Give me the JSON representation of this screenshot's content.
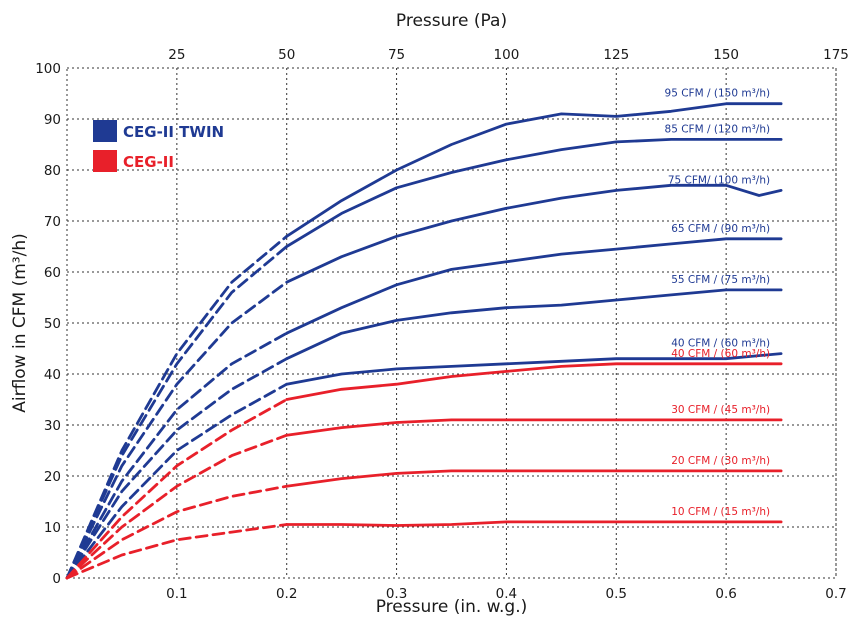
{
  "chart_data": {
    "type": "line",
    "title": "",
    "xlabel": "Pressure (in. w.g.)",
    "ylabel": "Airflow in CFM (m³/h)",
    "x2label": "Pressure (Pa)",
    "xlim": [
      0,
      0.7
    ],
    "ylim": [
      0,
      100
    ],
    "x2lim": [
      0,
      175
    ],
    "x_ticks": [
      0.1,
      0.2,
      0.3,
      0.4,
      0.5,
      0.6,
      0.7
    ],
    "y_ticks": [
      0,
      10,
      20,
      30,
      40,
      50,
      60,
      70,
      80,
      90,
      100
    ],
    "x2_ticks": [
      25,
      50,
      75,
      100,
      125,
      150,
      175
    ],
    "grid": true,
    "legend": {
      "placement": "top-left",
      "entries": [
        {
          "name": "CEG-II TWIN",
          "color": "#1f3a93"
        },
        {
          "name": "CEG-II",
          "color": "#e8202a"
        }
      ]
    },
    "series": [
      {
        "name": "95 CFM / (150 m³/h)",
        "group": "CEG-II TWIN",
        "color": "#1f3a93",
        "dashed": [
          [
            0,
            0
          ],
          [
            0.05,
            25
          ],
          [
            0.1,
            44
          ],
          [
            0.15,
            58
          ],
          [
            0.2,
            67
          ]
        ],
        "solid": [
          [
            0.2,
            67
          ],
          [
            0.25,
            74
          ],
          [
            0.3,
            80
          ],
          [
            0.35,
            85
          ],
          [
            0.4,
            89
          ],
          [
            0.45,
            91
          ],
          [
            0.5,
            90.5
          ],
          [
            0.55,
            91.5
          ],
          [
            0.6,
            93
          ],
          [
            0.65,
            93
          ]
        ]
      },
      {
        "name": "85 CFM / (120 m³/h)",
        "group": "CEG-II TWIN",
        "color": "#1f3a93",
        "dashed": [
          [
            0,
            0
          ],
          [
            0.05,
            24
          ],
          [
            0.1,
            42
          ],
          [
            0.15,
            56
          ],
          [
            0.2,
            65
          ]
        ],
        "solid": [
          [
            0.2,
            65
          ],
          [
            0.25,
            71.5
          ],
          [
            0.3,
            76.5
          ],
          [
            0.35,
            79.5
          ],
          [
            0.4,
            82
          ],
          [
            0.45,
            84
          ],
          [
            0.5,
            85.5
          ],
          [
            0.55,
            86
          ],
          [
            0.6,
            86
          ],
          [
            0.65,
            86
          ]
        ]
      },
      {
        "name": "75 CFM/ (100 m³/h)",
        "group": "CEG-II TWIN",
        "color": "#1f3a93",
        "dashed": [
          [
            0,
            0
          ],
          [
            0.05,
            22
          ],
          [
            0.1,
            38
          ],
          [
            0.15,
            50
          ],
          [
            0.2,
            58
          ]
        ],
        "solid": [
          [
            0.2,
            58
          ],
          [
            0.25,
            63
          ],
          [
            0.3,
            67
          ],
          [
            0.35,
            70
          ],
          [
            0.4,
            72.5
          ],
          [
            0.45,
            74.5
          ],
          [
            0.5,
            76
          ],
          [
            0.55,
            77
          ],
          [
            0.6,
            77
          ],
          [
            0.63,
            75
          ],
          [
            0.65,
            76
          ]
        ]
      },
      {
        "name": "65 CFM / (90 m³/h)",
        "group": "CEG-II TWIN",
        "color": "#1f3a93",
        "dashed": [
          [
            0,
            0
          ],
          [
            0.05,
            19
          ],
          [
            0.1,
            33
          ],
          [
            0.15,
            42
          ],
          [
            0.2,
            48
          ]
        ],
        "solid": [
          [
            0.2,
            48
          ],
          [
            0.25,
            53
          ],
          [
            0.3,
            57.5
          ],
          [
            0.35,
            60.5
          ],
          [
            0.4,
            62
          ],
          [
            0.45,
            63.5
          ],
          [
            0.5,
            64.5
          ],
          [
            0.55,
            65.5
          ],
          [
            0.6,
            66.5
          ],
          [
            0.65,
            66.5
          ]
        ]
      },
      {
        "name": "55 CFM / (75 m³/h)",
        "group": "CEG-II TWIN",
        "color": "#1f3a93",
        "dashed": [
          [
            0,
            0
          ],
          [
            0.05,
            17
          ],
          [
            0.1,
            29
          ],
          [
            0.15,
            37
          ],
          [
            0.2,
            43
          ]
        ],
        "solid": [
          [
            0.2,
            43
          ],
          [
            0.25,
            48
          ],
          [
            0.3,
            50.5
          ],
          [
            0.35,
            52
          ],
          [
            0.4,
            53
          ],
          [
            0.45,
            53.5
          ],
          [
            0.5,
            54.5
          ],
          [
            0.55,
            55.5
          ],
          [
            0.6,
            56.5
          ],
          [
            0.65,
            56.5
          ]
        ]
      },
      {
        "name": "40 CFM / (60 m³/h)",
        "group": "CEG-II TWIN",
        "color": "#1f3a93",
        "dashed": [
          [
            0,
            0
          ],
          [
            0.05,
            14
          ],
          [
            0.1,
            25
          ],
          [
            0.15,
            32
          ],
          [
            0.2,
            38
          ]
        ],
        "solid": [
          [
            0.2,
            38
          ],
          [
            0.25,
            40
          ],
          [
            0.3,
            41
          ],
          [
            0.35,
            41.5
          ],
          [
            0.4,
            42
          ],
          [
            0.45,
            42.5
          ],
          [
            0.5,
            43
          ],
          [
            0.55,
            43
          ],
          [
            0.6,
            43
          ],
          [
            0.65,
            44
          ]
        ]
      },
      {
        "name": "40 CFM / (60 m³/h)",
        "group": "CEG-II",
        "color": "#e8202a",
        "dashed": [
          [
            0,
            0
          ],
          [
            0.05,
            12
          ],
          [
            0.1,
            22
          ],
          [
            0.15,
            29
          ],
          [
            0.2,
            35
          ]
        ],
        "solid": [
          [
            0.2,
            35
          ],
          [
            0.25,
            37
          ],
          [
            0.3,
            38
          ],
          [
            0.35,
            39.5
          ],
          [
            0.4,
            40.5
          ],
          [
            0.45,
            41.5
          ],
          [
            0.5,
            42
          ],
          [
            0.55,
            42
          ],
          [
            0.6,
            42
          ],
          [
            0.65,
            42
          ]
        ]
      },
      {
        "name": "30 CFM / (45 m³/h)",
        "group": "CEG-II",
        "color": "#e8202a",
        "dashed": [
          [
            0,
            0
          ],
          [
            0.05,
            10
          ],
          [
            0.1,
            18
          ],
          [
            0.15,
            24
          ],
          [
            0.2,
            28
          ]
        ],
        "solid": [
          [
            0.2,
            28
          ],
          [
            0.25,
            29.5
          ],
          [
            0.3,
            30.5
          ],
          [
            0.35,
            31
          ],
          [
            0.4,
            31
          ],
          [
            0.45,
            31
          ],
          [
            0.5,
            31
          ],
          [
            0.55,
            31
          ],
          [
            0.6,
            31
          ],
          [
            0.65,
            31
          ]
        ]
      },
      {
        "name": "20 CFM / (30 m³/h)",
        "group": "CEG-II",
        "color": "#e8202a",
        "dashed": [
          [
            0,
            0
          ],
          [
            0.05,
            7.5
          ],
          [
            0.1,
            13
          ],
          [
            0.15,
            16
          ],
          [
            0.2,
            18
          ]
        ],
        "solid": [
          [
            0.2,
            18
          ],
          [
            0.25,
            19.5
          ],
          [
            0.3,
            20.5
          ],
          [
            0.35,
            21
          ],
          [
            0.4,
            21
          ],
          [
            0.45,
            21
          ],
          [
            0.5,
            21
          ],
          [
            0.55,
            21
          ],
          [
            0.6,
            21
          ],
          [
            0.65,
            21
          ]
        ]
      },
      {
        "name": "10 CFM / (15 m³/h)",
        "group": "CEG-II",
        "color": "#e8202a",
        "dashed": [
          [
            0,
            0
          ],
          [
            0.05,
            4.5
          ],
          [
            0.1,
            7.5
          ],
          [
            0.15,
            9
          ],
          [
            0.2,
            10.5
          ]
        ],
        "solid": [
          [
            0.2,
            10.5
          ],
          [
            0.25,
            10.5
          ],
          [
            0.3,
            10.3
          ],
          [
            0.35,
            10.5
          ],
          [
            0.4,
            11
          ],
          [
            0.45,
            11
          ],
          [
            0.5,
            11
          ],
          [
            0.55,
            11
          ],
          [
            0.6,
            11
          ],
          [
            0.65,
            11
          ]
        ]
      }
    ]
  }
}
